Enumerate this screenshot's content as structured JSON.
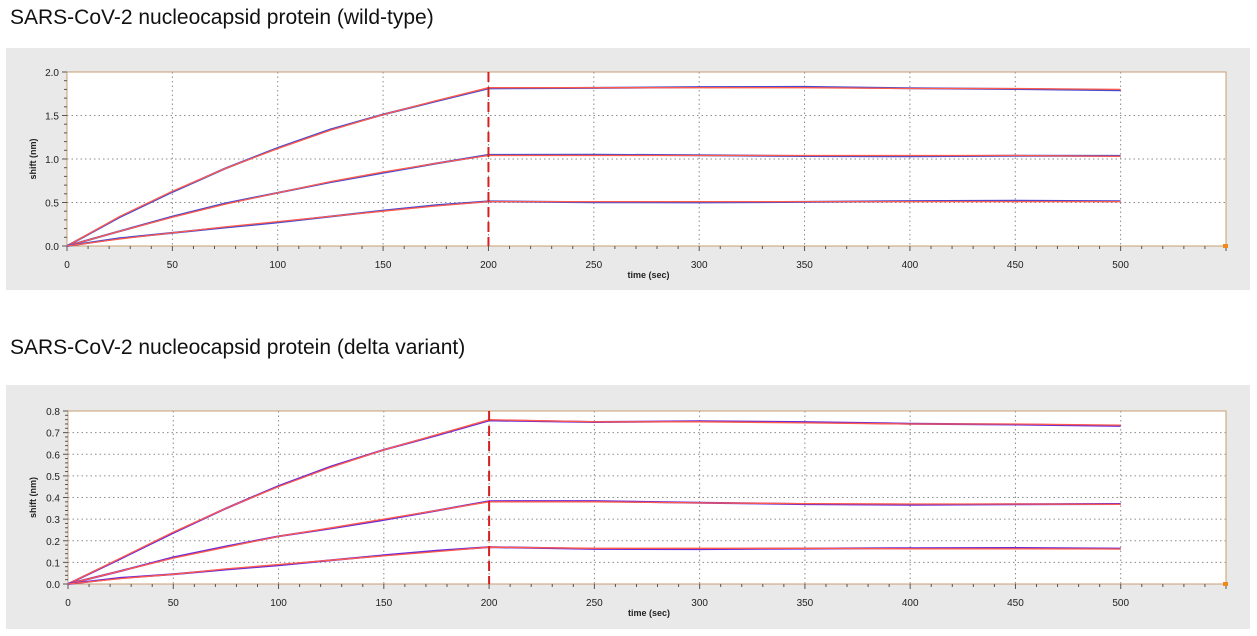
{
  "chart_data": [
    {
      "type": "line",
      "title": "SARS-CoV-2 nucleocapsid protein (wild-type)",
      "xlabel": "time (sec)",
      "ylabel": "shift (nm)",
      "xlim": [
        0,
        550
      ],
      "ylim": [
        0,
        2.0
      ],
      "xticks": [
        0,
        50,
        100,
        150,
        200,
        250,
        300,
        350,
        400,
        450,
        500
      ],
      "yticks": [
        0.0,
        0.5,
        1.0,
        1.5,
        2.0
      ],
      "ytick_labels": [
        "0.0",
        "0.5",
        "1.0",
        "1.5",
        "2.0"
      ],
      "grid": true,
      "marker_line_x": 200,
      "colors": {
        "data": "#4a4ad0",
        "fit": "#ff5a4a",
        "marker": "#d62020",
        "frame": "#c8a070"
      },
      "series": [
        {
          "x": [
            0,
            25,
            50,
            75,
            100,
            125,
            150,
            175,
            200,
            250,
            300,
            350,
            400,
            450,
            500
          ],
          "y": [
            0,
            0.34,
            0.63,
            0.89,
            1.12,
            1.33,
            1.51,
            1.67,
            1.82,
            1.82,
            1.82,
            1.82,
            1.81,
            1.81,
            1.8
          ]
        },
        {
          "x": [
            0,
            25,
            50,
            75,
            100,
            125,
            150,
            175,
            200,
            250,
            300,
            350,
            400,
            450,
            500
          ],
          "y": [
            0,
            0.17,
            0.33,
            0.48,
            0.61,
            0.74,
            0.85,
            0.95,
            1.04,
            1.04,
            1.04,
            1.04,
            1.04,
            1.04,
            1.03
          ]
        },
        {
          "x": [
            0,
            25,
            50,
            75,
            100,
            125,
            150,
            175,
            200,
            250,
            300,
            350,
            400,
            450,
            500
          ],
          "y": [
            0,
            0.08,
            0.15,
            0.22,
            0.28,
            0.34,
            0.4,
            0.46,
            0.51,
            0.51,
            0.51,
            0.51,
            0.51,
            0.51,
            0.51
          ]
        }
      ]
    },
    {
      "type": "line",
      "title": "SARS-CoV-2 nucleocapsid protein (delta variant)",
      "xlabel": "time (sec)",
      "ylabel": "shift (nm)",
      "xlim": [
        0,
        550
      ],
      "ylim": [
        0,
        0.8
      ],
      "xticks": [
        0,
        50,
        100,
        150,
        200,
        250,
        300,
        350,
        400,
        450,
        500
      ],
      "yticks": [
        0,
        0.1,
        0.2,
        0.3,
        0.4,
        0.5,
        0.6,
        0.7,
        0.8
      ],
      "ytick_labels": [
        "0.0",
        "0.1",
        "0.2",
        "0.3",
        "0.4",
        "0.5",
        "0.6",
        "0.7",
        "0.8"
      ],
      "grid": true,
      "marker_line_x": 200,
      "colors": {
        "data": "#6a2ad8",
        "fit": "#ff5a4a",
        "marker": "#d62020",
        "frame": "#c8a070"
      },
      "series": [
        {
          "x": [
            0,
            25,
            50,
            75,
            100,
            125,
            150,
            175,
            200,
            250,
            300,
            350,
            400,
            450,
            500
          ],
          "y": [
            0,
            0.12,
            0.24,
            0.35,
            0.45,
            0.54,
            0.62,
            0.69,
            0.76,
            0.75,
            0.75,
            0.745,
            0.74,
            0.74,
            0.735
          ]
        },
        {
          "x": [
            0,
            25,
            50,
            75,
            100,
            125,
            150,
            175,
            200,
            250,
            300,
            350,
            400,
            450,
            500
          ],
          "y": [
            0,
            0.06,
            0.12,
            0.17,
            0.22,
            0.26,
            0.3,
            0.34,
            0.38,
            0.38,
            0.375,
            0.372,
            0.37,
            0.37,
            0.368
          ]
        },
        {
          "x": [
            0,
            25,
            50,
            75,
            100,
            125,
            150,
            175,
            200,
            250,
            300,
            350,
            400,
            450,
            500
          ],
          "y": [
            0,
            0.025,
            0.045,
            0.07,
            0.09,
            0.11,
            0.13,
            0.15,
            0.17,
            0.165,
            0.165,
            0.165,
            0.163,
            0.163,
            0.162
          ]
        }
      ]
    }
  ]
}
